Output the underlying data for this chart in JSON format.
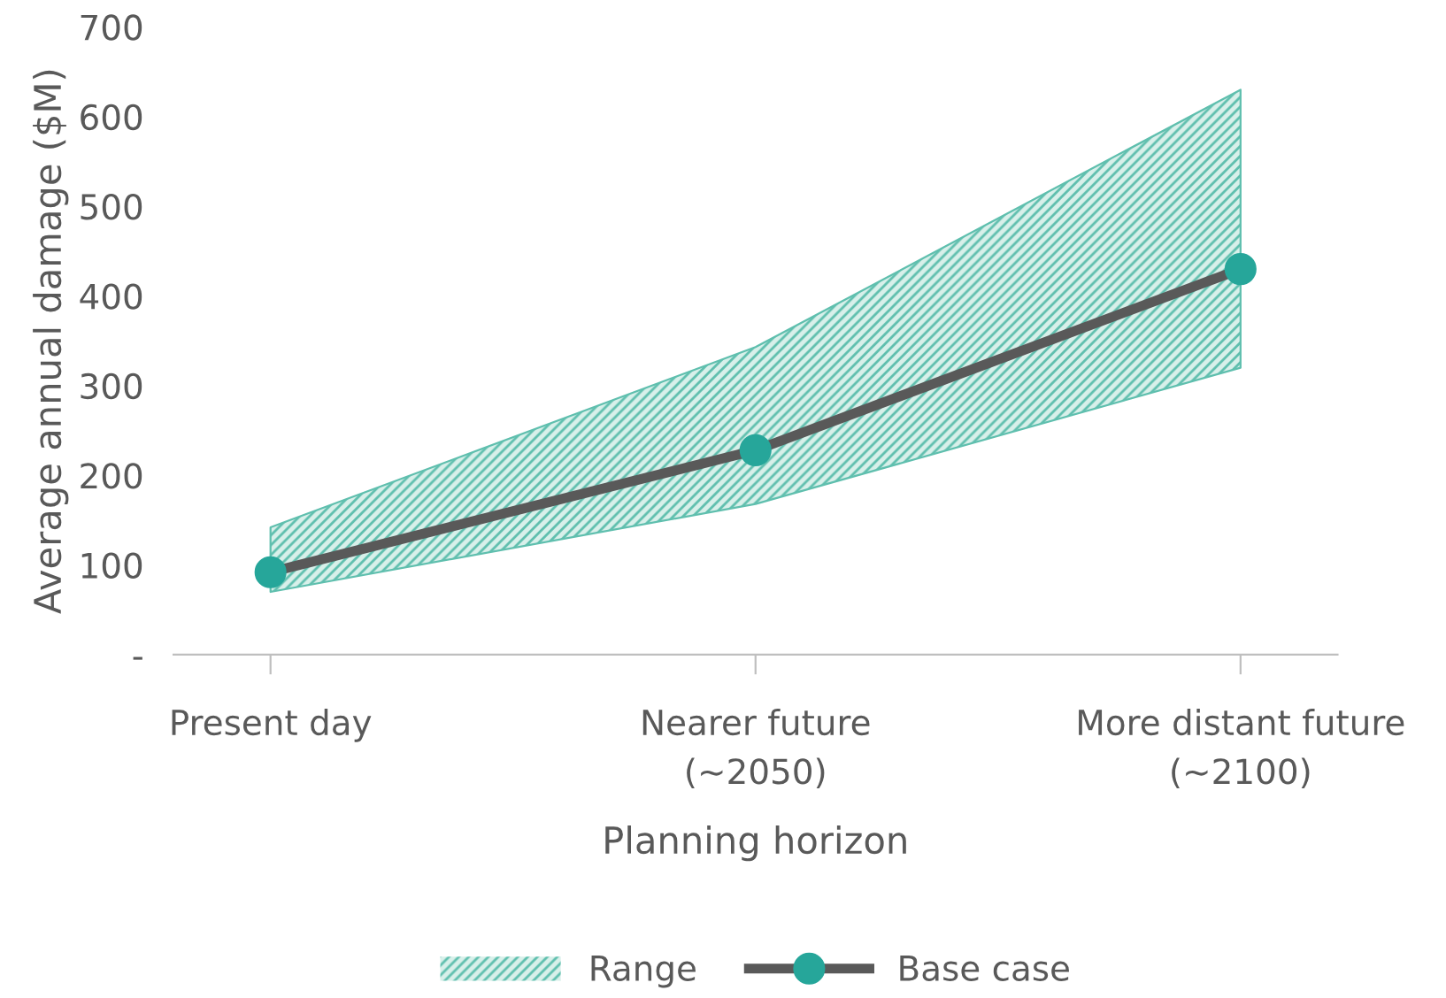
{
  "chart_data": {
    "type": "line",
    "xlabel": "Planning horizon",
    "ylabel": "Average annual damage ($M)",
    "categories": [
      "Present day",
      "Nearer future\n(~2050)",
      "More distant future\n(~2100)"
    ],
    "series": [
      {
        "name": "Range",
        "type": "area",
        "color": "#5fbfae",
        "values": [
          null,
          null,
          null
        ],
        "lower": [
          70,
          168,
          320
        ],
        "upper": [
          142,
          343,
          630
        ]
      },
      {
        "name": "Base case",
        "color": "#595959",
        "marker": "circle",
        "values": [
          92,
          228,
          430
        ]
      }
    ],
    "ylim": [
      0,
      700
    ],
    "yticks": [
      {
        "value": 0,
        "label": "-"
      },
      100,
      200,
      300,
      400,
      500,
      600,
      700
    ],
    "grid": false,
    "legend": "bottom",
    "line_style": "solid"
  }
}
